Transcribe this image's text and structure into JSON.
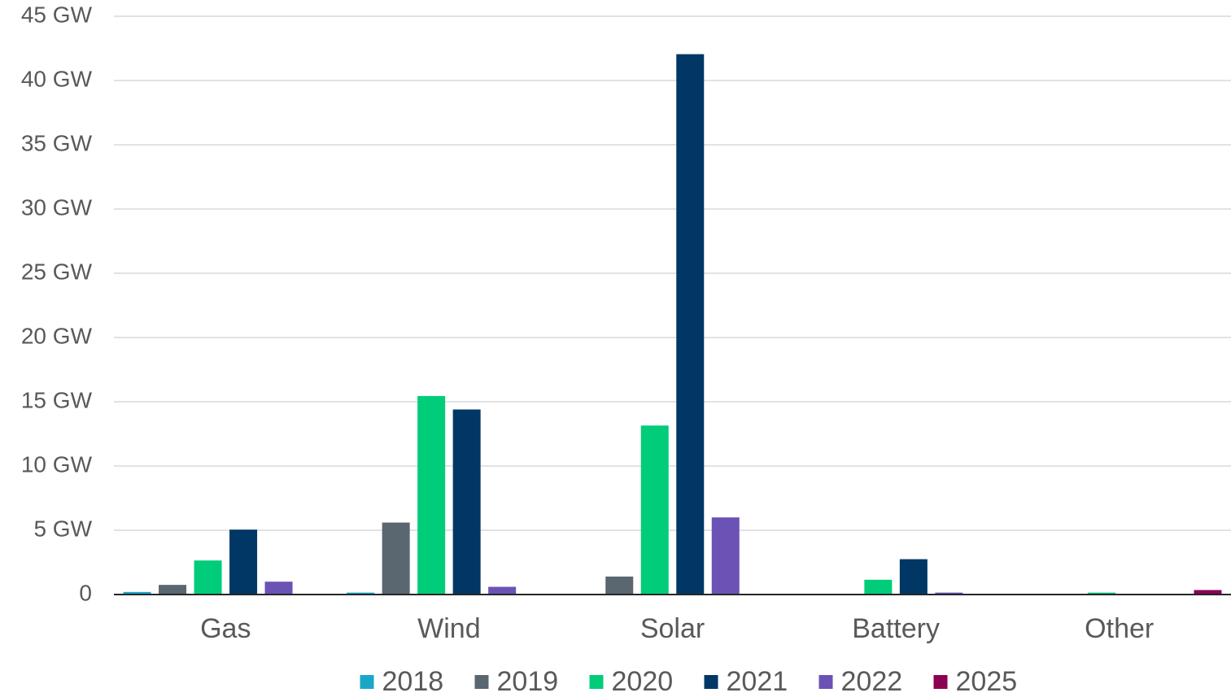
{
  "chart_data": {
    "type": "bar",
    "categories": [
      "Gas",
      "Wind",
      "Solar",
      "Battery",
      "Other"
    ],
    "series": [
      {
        "name": "2018",
        "color": "#1aa7c7",
        "values": [
          0.2,
          0.15,
          0,
          0,
          0
        ]
      },
      {
        "name": "2019",
        "color": "#5a6670",
        "values": [
          0.75,
          5.6,
          1.4,
          0,
          0
        ]
      },
      {
        "name": "2020",
        "color": "#00cc7a",
        "values": [
          2.65,
          15.45,
          13.15,
          1.15,
          0.15
        ]
      },
      {
        "name": "2021",
        "color": "#003764",
        "values": [
          5.05,
          14.4,
          42.05,
          2.75,
          0
        ]
      },
      {
        "name": "2022",
        "color": "#6b52b5",
        "values": [
          1.0,
          0.6,
          6.0,
          0.15,
          0
        ]
      },
      {
        "name": "2025",
        "color": "#8c0052",
        "values": [
          0,
          0,
          0,
          0,
          0.35
        ]
      }
    ],
    "ylim": [
      0,
      45
    ],
    "yticks": [
      0,
      {
        "value": 5,
        "label": "5 GW"
      },
      {
        "value": 10,
        "label": "10 GW"
      },
      {
        "value": 15,
        "label": "15 GW"
      },
      {
        "value": 20,
        "label": "20 GW"
      },
      {
        "value": 25,
        "label": "25 GW"
      },
      {
        "value": 30,
        "label": "30 GW"
      },
      {
        "value": 35,
        "label": "35 GW"
      },
      {
        "value": 40,
        "label": "40 GW"
      },
      {
        "value": 45,
        "label": "45 GW"
      }
    ],
    "grid": true,
    "legend": "bottom"
  }
}
